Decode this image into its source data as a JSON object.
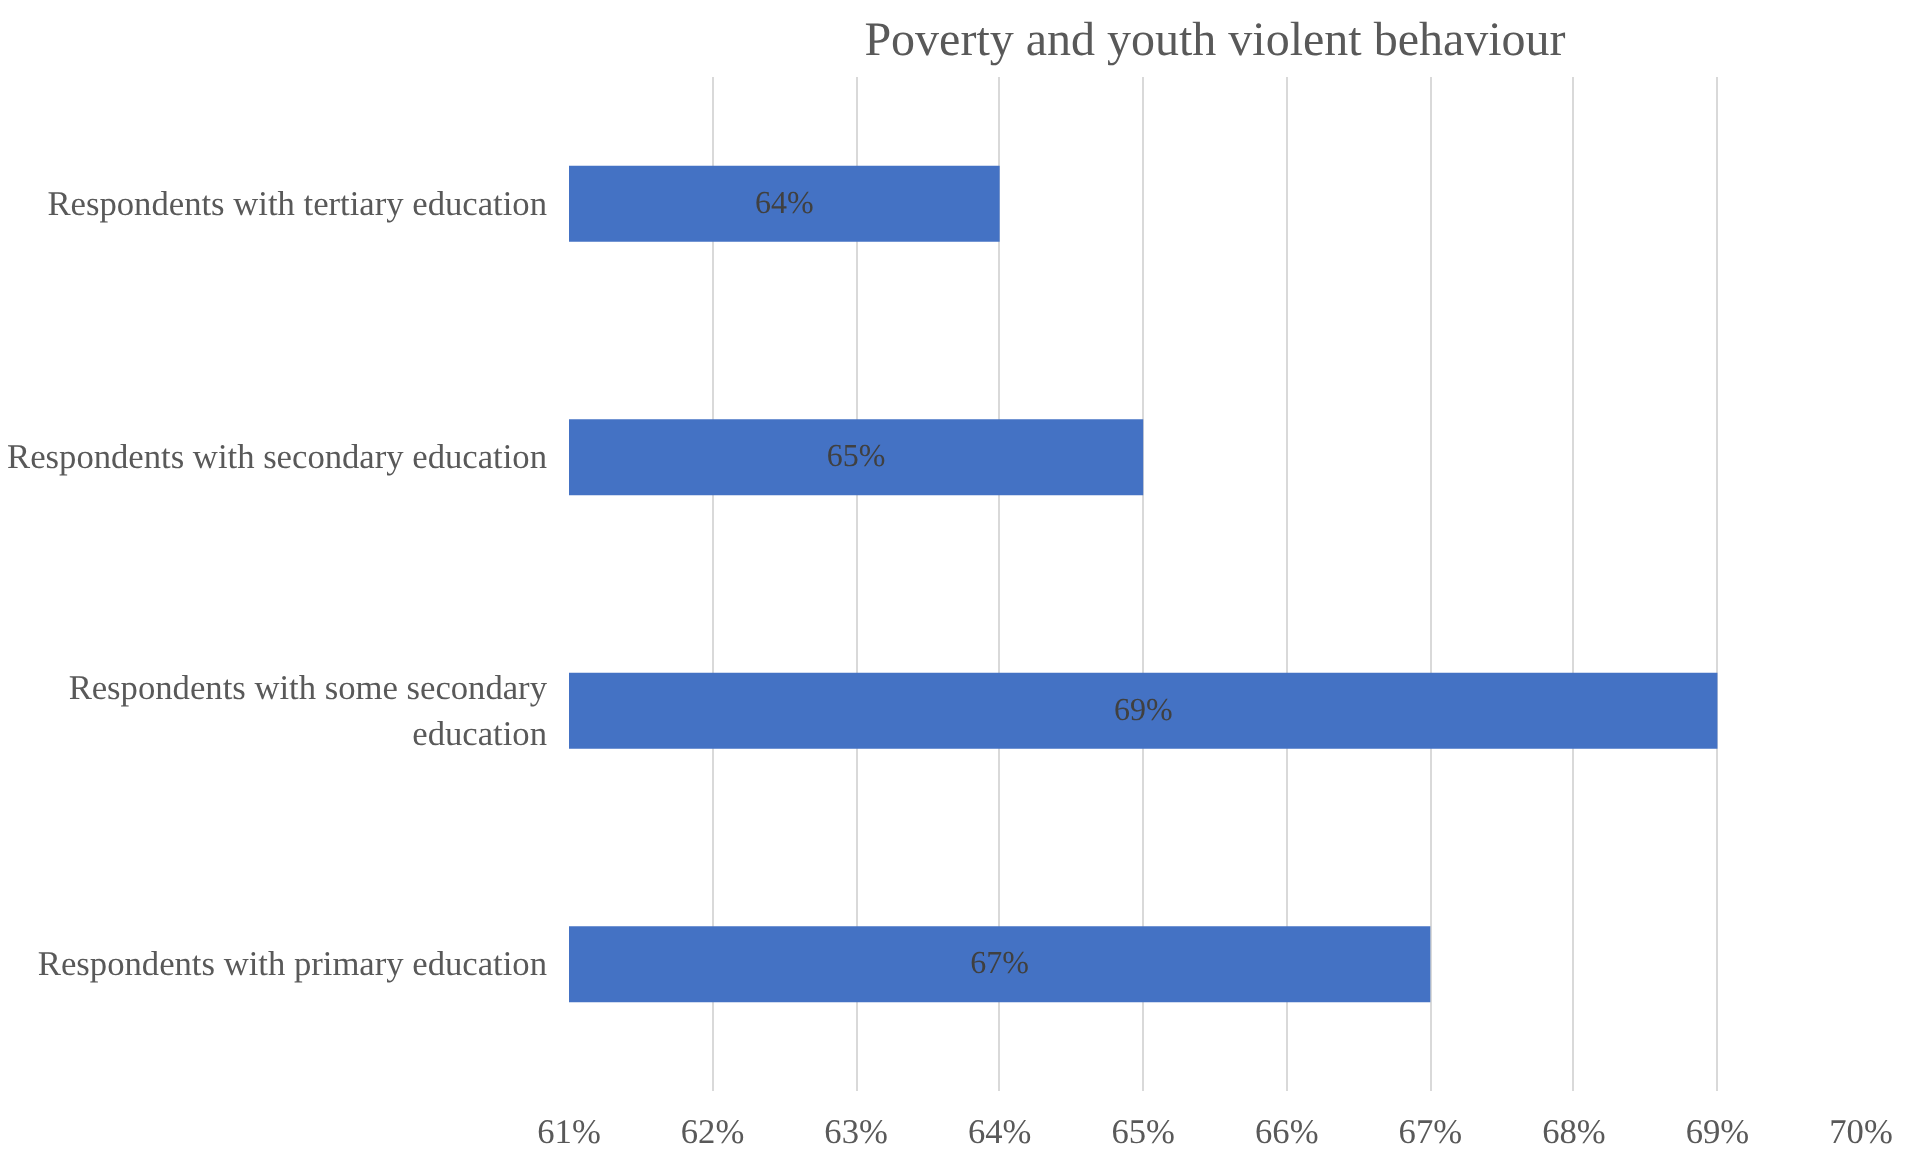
{
  "chart_data": {
    "type": "bar",
    "orientation": "horizontal",
    "title": "Poverty and youth violent behaviour",
    "categories": [
      "Respondents with tertiary education",
      "Respondents with secondary education",
      "Respondents with some secondary education",
      "Respondents with primary education"
    ],
    "values": [
      64,
      65,
      69,
      67
    ],
    "value_labels": [
      "64%",
      "65%",
      "69%",
      "67%"
    ],
    "color": "#4472c4",
    "xlim": [
      61,
      70
    ],
    "xticks": [
      {
        "value": 61,
        "label": "61%"
      },
      {
        "value": 62,
        "label": "62%"
      },
      {
        "value": 63,
        "label": "63%"
      },
      {
        "value": 64,
        "label": "64%"
      },
      {
        "value": 65,
        "label": "65%"
      },
      {
        "value": 66,
        "label": "66%"
      },
      {
        "value": 67,
        "label": "67%"
      },
      {
        "value": 68,
        "label": "68%"
      },
      {
        "value": 69,
        "label": "69%"
      },
      {
        "value": 70,
        "label": "70%"
      }
    ],
    "grid": "x"
  }
}
